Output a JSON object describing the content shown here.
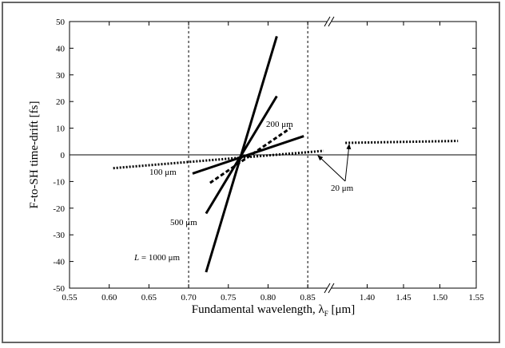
{
  "chart_data": {
    "type": "line",
    "xlabel": "Fundamental wavelength, λ",
    "xlabel_sub": "F",
    "xlabel_unit": "[μm]",
    "ylabel": "F-to-SH time-drift [fs]",
    "ylim": [
      -50,
      50
    ],
    "yticks": [
      50,
      40,
      30,
      20,
      10,
      0,
      -10,
      -20,
      -30,
      -40,
      -50
    ],
    "x_axis_broken": true,
    "x_segments": [
      {
        "range": [
          0.55,
          0.875
        ],
        "ticks": [
          "0.55",
          "0.60",
          "0.65",
          "0.70",
          "0.75",
          "0.80",
          "0.85"
        ]
      },
      {
        "range": [
          1.35,
          1.55
        ],
        "ticks": [
          "1.40",
          "1.45",
          "1.50",
          "1.55"
        ]
      }
    ],
    "vertical_dashed_lines_x": [
      0.7,
      0.85
    ],
    "grid": false,
    "series": [
      {
        "label": "L = 1000 μm",
        "style": "solid",
        "x": [
          0.722,
          0.811
        ],
        "y": [
          -44,
          44.5
        ]
      },
      {
        "label": "500 μm",
        "style": "solid",
        "x": [
          0.722,
          0.811
        ],
        "y": [
          -22,
          22
        ]
      },
      {
        "label": "200 μm",
        "style": "dashed",
        "x": [
          0.727,
          0.828
        ],
        "y": [
          -10.5,
          10
        ]
      },
      {
        "label": "",
        "style": "solid",
        "x": [
          0.705,
          0.845
        ],
        "y": [
          -7,
          7
        ]
      },
      {
        "label": "100 μm",
        "style": "dotted",
        "x": [
          0.605,
          0.87
        ],
        "y": [
          -5,
          1.5
        ]
      },
      {
        "label": "20 μm",
        "style": "dotted",
        "x": [
          1.37,
          1.525
        ],
        "y": [
          4.5,
          5.2
        ]
      }
    ],
    "annotations": {
      "l1000": "L = 1000 μm",
      "l500": "500 μm",
      "l200": "200 μm",
      "l100": "100 μm",
      "l20": "20 μm"
    }
  }
}
